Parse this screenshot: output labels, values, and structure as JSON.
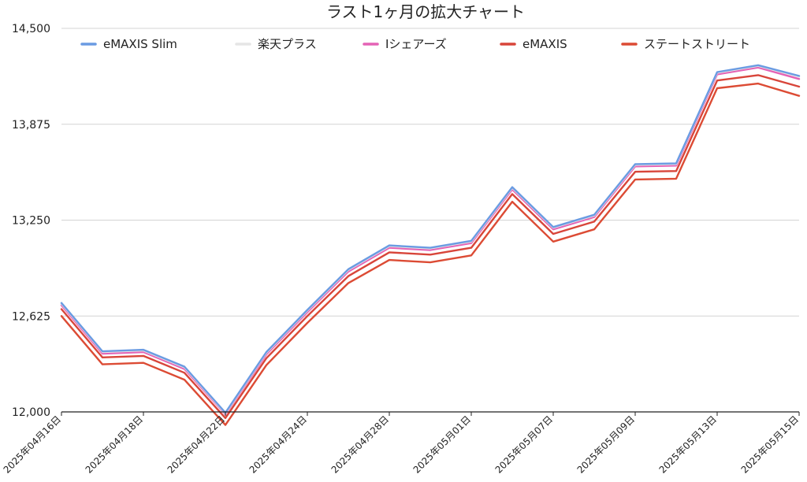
{
  "chart_data": {
    "type": "line",
    "title": "ラスト1ヶ月の拡大チャート",
    "xlabel": "",
    "ylabel": "",
    "ylim": [
      12000,
      14500
    ],
    "yticks": [
      "12,000",
      "12,625",
      "13,250",
      "13,875",
      "14,500"
    ],
    "ytick_values": [
      12000,
      12625,
      13250,
      13875,
      14500
    ],
    "grid": true,
    "legend_position": "top",
    "x": [
      "2025年04月16日",
      "2025年04月17日",
      "2025年04月18日",
      "2025年04月21日",
      "2025年04月22日",
      "2025年04月23日",
      "2025年04月24日",
      "2025年04月25日",
      "2025年04月28日",
      "2025年04月30日",
      "2025年05月01日",
      "2025年05月02日",
      "2025年05月07日",
      "2025年05月08日",
      "2025年05月09日",
      "2025年05月12日",
      "2025年05月13日",
      "2025年05月14日",
      "2025年05月15日"
    ],
    "xtick_labels": [
      "2025年04月16日",
      "2025年04月18日",
      "2025年04月22日",
      "2025年04月24日",
      "2025年04月28日",
      "2025年05月01日",
      "2025年05月07日",
      "2025年05月09日",
      "2025年05月13日",
      "2025年05月15日"
    ],
    "xtick_indices": [
      0,
      2,
      4,
      6,
      8,
      10,
      12,
      14,
      16,
      18
    ],
    "series": [
      {
        "name": "eMAXIS Slim",
        "color": "#6a9be2",
        "values": [
          12710,
          12395,
          12405,
          12295,
          11995,
          12390,
          12665,
          12930,
          13085,
          13070,
          13115,
          13465,
          13205,
          13285,
          13615,
          13620,
          14215,
          14260,
          14190
        ]
      },
      {
        "name": "楽天プラス",
        "color": "#e5e5e5",
        "values": [
          12705,
          12390,
          12400,
          12290,
          11990,
          12385,
          12660,
          12925,
          13080,
          13065,
          13110,
          13460,
          13200,
          13280,
          13610,
          13615,
          14210,
          14255,
          14185
        ]
      },
      {
        "name": "Iシェアーズ",
        "color": "#e462b5",
        "values": [
          12695,
          12380,
          12390,
          12280,
          11985,
          12375,
          12650,
          12915,
          13070,
          13055,
          13100,
          13450,
          13190,
          13270,
          13600,
          13605,
          14200,
          14245,
          14170
        ]
      },
      {
        "name": "eMAXIS",
        "color": "#d8453a",
        "values": [
          12670,
          12355,
          12365,
          12255,
          11960,
          12350,
          12625,
          12885,
          13040,
          13025,
          13070,
          13420,
          13160,
          13240,
          13565,
          13570,
          14160,
          14195,
          14120
        ]
      },
      {
        "name": "ステートストリート",
        "color": "#dc4b34",
        "values": [
          12625,
          12310,
          12320,
          12210,
          11915,
          12305,
          12580,
          12840,
          12990,
          12975,
          13020,
          13370,
          13110,
          13190,
          13515,
          13520,
          14110,
          14140,
          14060
        ]
      }
    ]
  }
}
